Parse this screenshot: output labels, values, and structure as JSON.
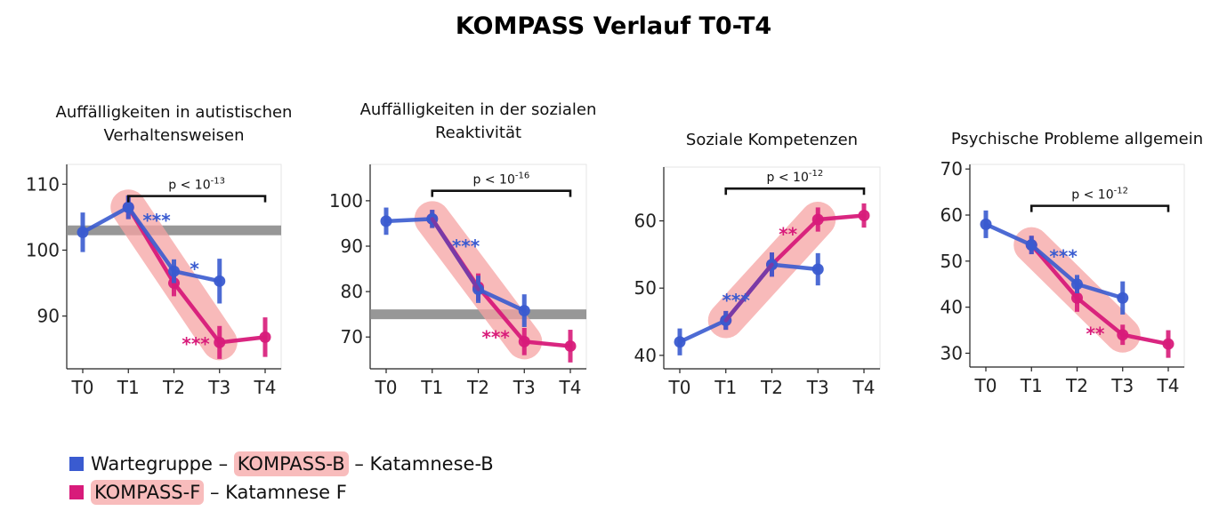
{
  "title": "KOMPASS Verlauf T0-T4",
  "colors": {
    "warte": "#3a5bd0",
    "kompass_f": "#d81b7a",
    "overlap": "#7a3aa6",
    "highlight": "#f6a3a3",
    "band": "#8c8c8c"
  },
  "legend": {
    "row1": {
      "part1": "Wartegruppe –",
      "highlight": "KOMPASS-B",
      "part2": "– Katamnese-B"
    },
    "row2": {
      "highlight": "KOMPASS-F",
      "part2": "– Katamnese F"
    }
  },
  "chart_data": [
    {
      "type": "line",
      "title_lines": [
        "Auffälligkeiten in autistischen",
        "Verhaltensweisen"
      ],
      "categories": [
        "T0",
        "T1",
        "T2",
        "T3",
        "T4"
      ],
      "ylim": [
        82,
        113
      ],
      "yticks": [
        90,
        100,
        110
      ],
      "band_y": 103,
      "series": [
        {
          "name": "Wartegruppe",
          "color": "warte",
          "values": [
            102.7,
            106.5,
            96.8,
            95.3,
            null
          ],
          "errors": [
            3,
            1.8,
            1.8,
            3.4,
            null
          ]
        },
        {
          "name": "KOMPASS-F",
          "color": "kompass_f",
          "values": [
            null,
            106.5,
            95.0,
            86.0,
            86.8
          ],
          "errors": [
            null,
            1.8,
            2.0,
            2.5,
            3.0
          ]
        }
      ],
      "highlight": {
        "from": [
          1,
          106.5
        ],
        "to": [
          3,
          86.0
        ]
      },
      "pvalue": {
        "text": "p < 10",
        "exp": "-13",
        "x_from": 1,
        "x_to": 4,
        "y": 108.2
      },
      "annotations": [
        {
          "text": "***",
          "x": 1.62,
          "y": 104.9,
          "color": "warte"
        },
        {
          "text": "*",
          "x": 2.45,
          "y": 97.6,
          "color": "warte"
        },
        {
          "text": "***",
          "x": 2.48,
          "y": 86.2,
          "color": "kompass_f"
        }
      ]
    },
    {
      "type": "line",
      "title_lines": [
        "Auffälligkeiten in der sozialen",
        "Reaktivität"
      ],
      "categories": [
        "T0",
        "T1",
        "T2",
        "T3",
        "T4"
      ],
      "ylim": [
        63,
        108
      ],
      "yticks": [
        70,
        80,
        90,
        100
      ],
      "band_y": 75,
      "series": [
        {
          "name": "Wartegruppe",
          "color": "warte",
          "values": [
            95.5,
            96.0,
            80.5,
            75.8,
            null
          ],
          "errors": [
            3,
            2,
            3,
            3.6,
            null
          ]
        },
        {
          "name": "KOMPASS-F",
          "color": "kompass_f",
          "values": [
            null,
            96.0,
            81.0,
            69.0,
            68.0
          ],
          "errors": [
            null,
            2,
            3,
            3,
            3.6
          ]
        }
      ],
      "highlight": {
        "from": [
          1,
          96.0
        ],
        "to": [
          3,
          69.0
        ]
      },
      "pvalue": {
        "text": "p < 10",
        "exp": "-16",
        "x_from": 1,
        "x_to": 4,
        "y": 102.2
      },
      "annotations": [
        {
          "text": "***",
          "x": 1.73,
          "y": 90.6,
          "color": "warte"
        },
        {
          "text": "***",
          "x": 2.38,
          "y": 70.5,
          "color": "kompass_f"
        }
      ]
    },
    {
      "type": "line",
      "title_lines": [
        "Soziale Kompetenzen"
      ],
      "categories": [
        "T0",
        "T1",
        "T2",
        "T3",
        "T4"
      ],
      "ylim": [
        38,
        68
      ],
      "yticks": [
        40,
        50,
        60
      ],
      "band_y": null,
      "series": [
        {
          "name": "Wartegruppe",
          "color": "warte",
          "values": [
            42.0,
            45.2,
            53.5,
            52.8,
            null
          ],
          "errors": [
            2,
            1.4,
            1.8,
            2.4,
            null
          ]
        },
        {
          "name": "KOMPASS-F",
          "color": "kompass_f",
          "values": [
            null,
            45.2,
            53.5,
            60.2,
            60.8
          ],
          "errors": [
            null,
            1.4,
            1.8,
            1.8,
            1.8
          ]
        }
      ],
      "highlight": {
        "from": [
          1,
          45.2
        ],
        "to": [
          3,
          60.2
        ]
      },
      "pvalue": {
        "text": "p < 10",
        "exp": "-12",
        "x_from": 1,
        "x_to": 4,
        "y": 64.8
      },
      "annotations": [
        {
          "text": "***",
          "x": 1.22,
          "y": 48.6,
          "color": "warte"
        },
        {
          "text": "**",
          "x": 2.35,
          "y": 58.4,
          "color": "kompass_f"
        }
      ]
    },
    {
      "type": "line",
      "title_lines": [
        "Psychische Probleme allgemein"
      ],
      "categories": [
        "T0",
        "T1",
        "T2",
        "T3",
        "T4"
      ],
      "ylim": [
        27,
        71
      ],
      "yticks": [
        30,
        40,
        50,
        60,
        70
      ],
      "band_y": null,
      "series": [
        {
          "name": "Wartegruppe",
          "color": "warte",
          "values": [
            58.0,
            53.5,
            45.0,
            42.0,
            null
          ],
          "errors": [
            3,
            2,
            2,
            3.6,
            null
          ]
        },
        {
          "name": "KOMPASS-F",
          "color": "kompass_f",
          "values": [
            null,
            53.5,
            42.0,
            34.0,
            32.0
          ],
          "errors": [
            null,
            2,
            3,
            2.2,
            3
          ]
        }
      ],
      "highlight": {
        "from": [
          1,
          53.5
        ],
        "to": [
          3,
          34.0
        ]
      },
      "pvalue": {
        "text": "p < 10",
        "exp": "-12",
        "x_from": 1,
        "x_to": 4,
        "y": 62.0
      },
      "annotations": [
        {
          "text": "***",
          "x": 1.7,
          "y": 51.6,
          "color": "warte"
        },
        {
          "text": "**",
          "x": 2.4,
          "y": 34.8,
          "color": "kompass_f"
        }
      ]
    }
  ]
}
